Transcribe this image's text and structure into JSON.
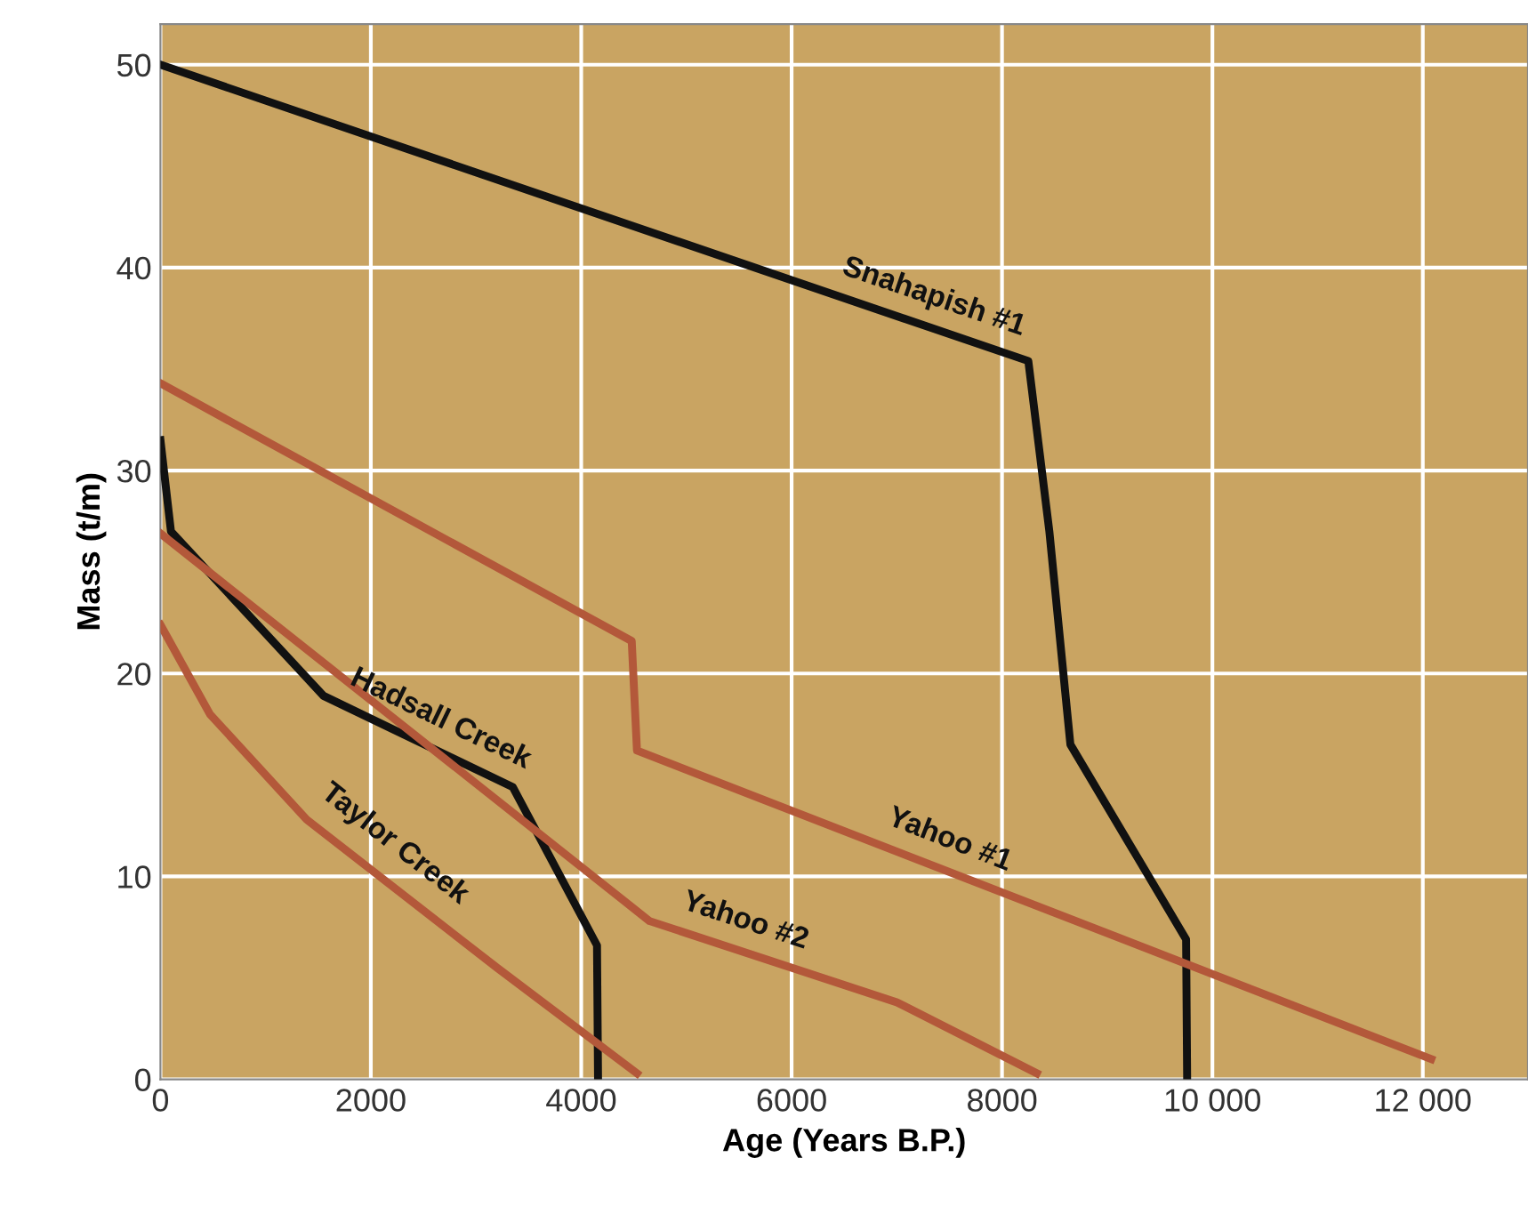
{
  "chart_data": {
    "type": "line",
    "xlabel": "Age (Years B.P.)",
    "ylabel": "Mass (t/m)",
    "xlim": [
      0,
      13000
    ],
    "ylim": [
      0,
      52
    ],
    "xticks": [
      0,
      2000,
      4000,
      6000,
      8000,
      {
        "value": 10000,
        "label": "10 000"
      },
      {
        "value": 12000,
        "label": "12 000"
      }
    ],
    "yticks": [
      0,
      10,
      20,
      30,
      40,
      50
    ],
    "grid": true,
    "marker": "none",
    "line_style": "solid",
    "series": [
      {
        "name": "Snahapish #1",
        "color": "#111111",
        "x": [
          0,
          8250,
          8450,
          8650,
          9750,
          9760
        ],
        "values": [
          50,
          35.4,
          27,
          16.5,
          6.9,
          0
        ]
      },
      {
        "name": "Hadsall Creek",
        "color": "#111111",
        "x": [
          0,
          100,
          1550,
          3350,
          4150,
          4160
        ],
        "values": [
          31.5,
          27,
          18.9,
          14.4,
          6.6,
          0
        ]
      },
      {
        "name": "Yahoo #1",
        "color": "#b3583a",
        "x": [
          0,
          4480,
          4530,
          12080
        ],
        "values": [
          34.3,
          21.6,
          16.2,
          1
        ]
      },
      {
        "name": "Yahoo #2",
        "color": "#b3583a",
        "x": [
          0,
          4650,
          7000,
          8330
        ],
        "values": [
          26.9,
          7.8,
          3.8,
          0.3
        ]
      },
      {
        "name": "Taylor Creek",
        "color": "#b3583a",
        "x": [
          0,
          470,
          1390,
          3200,
          4530
        ],
        "values": [
          22.4,
          18,
          12.8,
          5.5,
          0.3
        ]
      }
    ]
  }
}
